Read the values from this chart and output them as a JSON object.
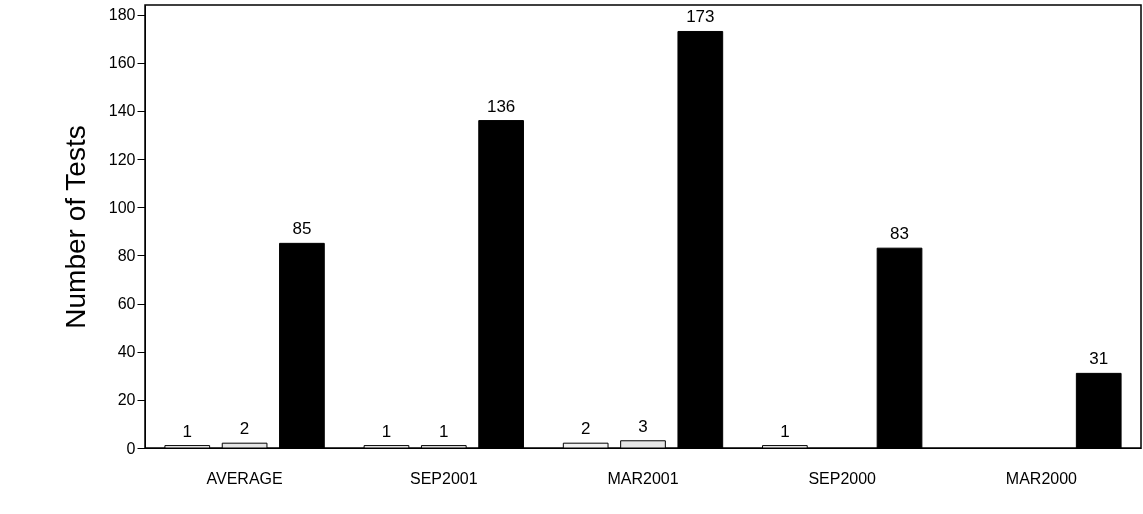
{
  "chart_data": {
    "type": "bar",
    "ylabel": "Number of Tests",
    "categories": [
      "AVERAGE",
      "SEP2001",
      "MAR2001",
      "SEP2000",
      "MAR2000"
    ],
    "series": [
      {
        "color": "#f2f2f2",
        "values": [
          1,
          1,
          2,
          1,
          null
        ]
      },
      {
        "color": "#e6e6e6",
        "values": [
          2,
          1,
          3,
          null,
          null
        ]
      },
      {
        "color": "#000000",
        "values": [
          85,
          136,
          173,
          83,
          31
        ]
      }
    ],
    "ylim": [
      0,
      184
    ],
    "yticks": [
      0,
      20,
      40,
      60,
      80,
      100,
      120,
      140,
      160,
      180
    ],
    "data_labels": true
  }
}
